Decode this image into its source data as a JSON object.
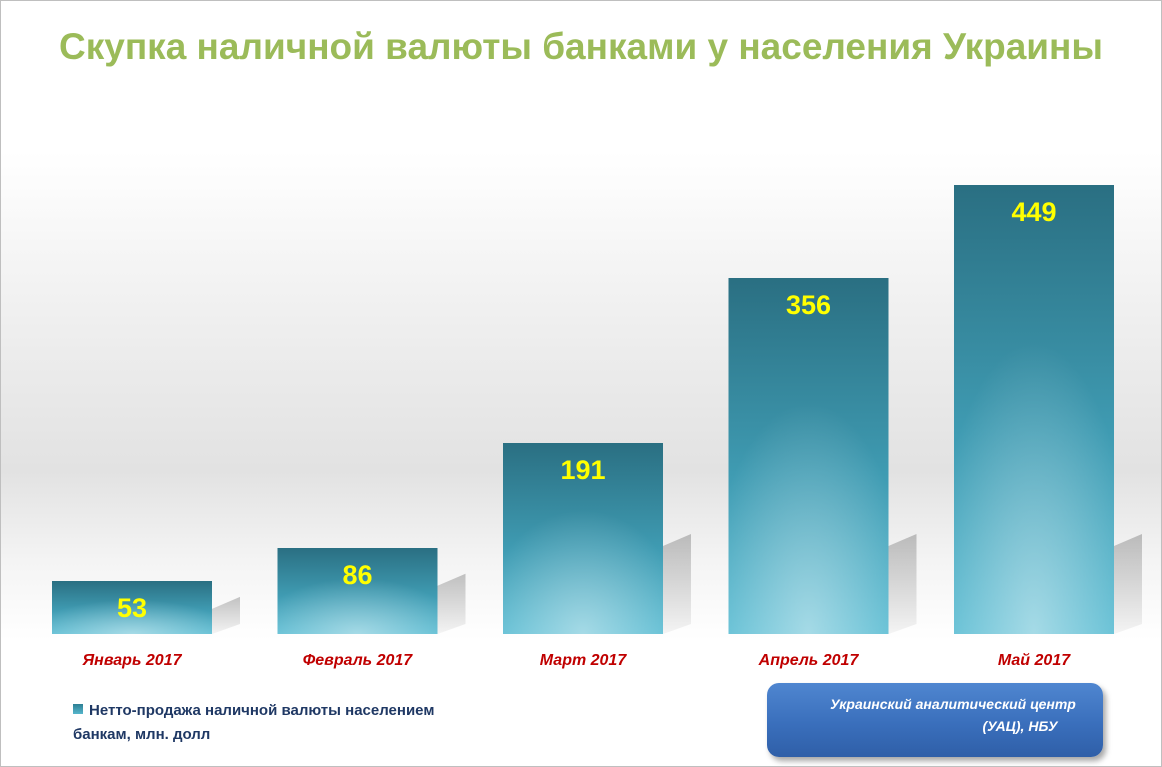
{
  "chart_data": {
    "type": "bar",
    "title": "Скупка наличной валюты банками у населения Украины",
    "categories": [
      "Январь 2017",
      "Февраль 2017",
      "Март 2017",
      "Апрель 2017",
      "Май 2017"
    ],
    "series": [
      {
        "name": "Нетто-продажа наличной валюты населением банкам, млн. долл",
        "values": [
          53,
          86,
          191,
          356,
          449
        ]
      }
    ],
    "data_labels": [
      "53",
      "86",
      "191",
      "356",
      "449"
    ],
    "xlabel": "",
    "ylabel": "",
    "ylim": [
      0,
      500
    ],
    "grid": false,
    "legend_position": "bottom-left"
  },
  "source": {
    "line1": "Украинский аналитический центр",
    "line2": "(УАЦ), НБУ"
  },
  "colors": {
    "title": "#9bbb59",
    "bar_top": "#2a6f82",
    "bar_bottom": "#5cbdd3",
    "data_label": "#ffff00",
    "category_label": "#c00000",
    "legend_text": "#1f3864",
    "source_box": "#3a6fbc"
  }
}
